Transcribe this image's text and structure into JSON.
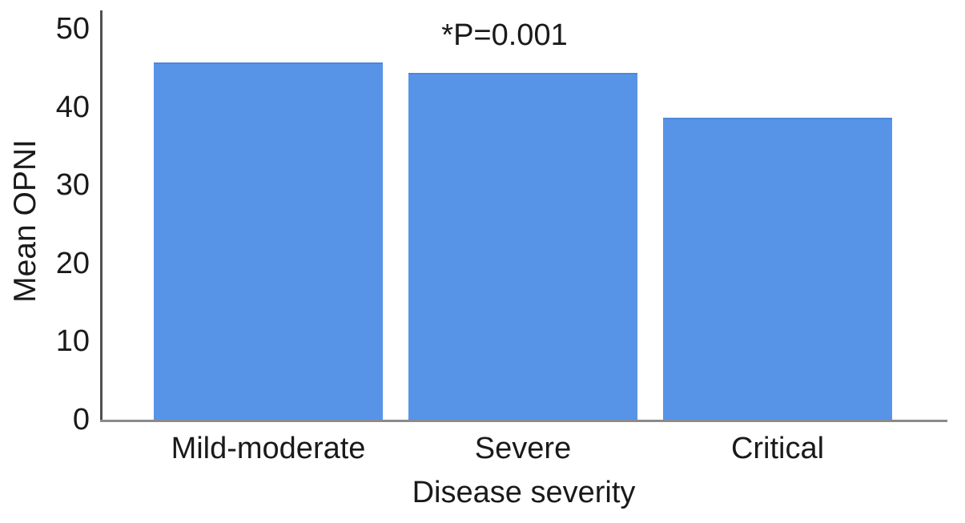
{
  "chart_data": {
    "type": "bar",
    "categories": [
      "Mild-moderate",
      "Severe",
      "Critical"
    ],
    "values": [
      45.7,
      44.4,
      38.6
    ],
    "annotation": "*P=0.001",
    "xlabel": "Disease severity",
    "ylabel": "Mean OPNI",
    "ylim": [
      0,
      50
    ],
    "yticks": [
      0,
      10,
      20,
      30,
      40,
      50
    ],
    "grid": false,
    "legend": "none",
    "colors": {
      "bar": "#5794e8",
      "bar_edge": "#4c87d9",
      "y_axis_line": "#4f4f4f",
      "x_axis_line": "#8a8a8a",
      "text": "#1a1a1a",
      "background": "#ffffff"
    }
  }
}
